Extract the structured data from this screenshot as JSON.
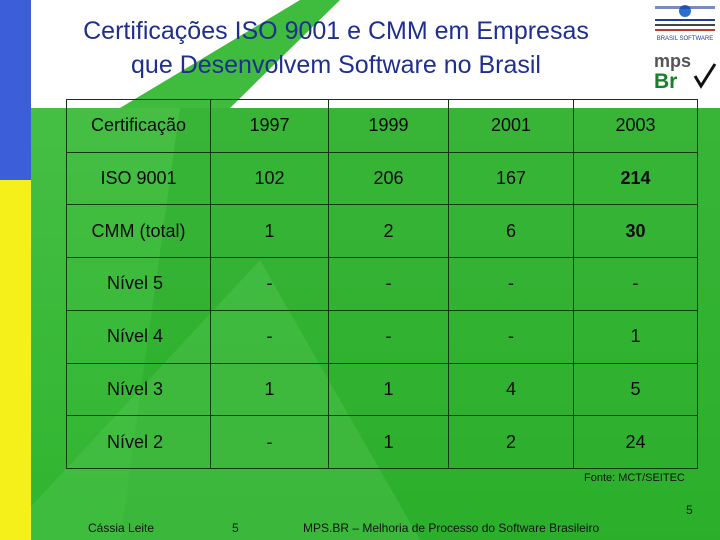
{
  "slide": {
    "title_line1": "Certificações ISO 9001 e CMM em Empresas",
    "title_line2": "que Desenvolvem Software no Brasil"
  },
  "logos": {
    "top_logo_text": "BRASIL SOFTWARE",
    "mps_logo_text_top": "mps",
    "mps_logo_text_bottom": "Br"
  },
  "table": {
    "header": [
      "Certificação",
      "1997",
      "1999",
      "2001",
      "2003"
    ],
    "rows": [
      [
        "ISO 9001",
        "102",
        "206",
        "167",
        "214"
      ],
      [
        "CMM (total)",
        "1",
        "2",
        "6",
        "30"
      ],
      [
        "Nível 5",
        "-",
        "-",
        "-",
        "-"
      ],
      [
        "Nível 4",
        "-",
        "-",
        "-",
        "1"
      ],
      [
        "Nível 3",
        "1",
        "1",
        "4",
        "5"
      ],
      [
        "Nível 2",
        "-",
        "1",
        "2",
        "24"
      ]
    ]
  },
  "source": "Fonte: MCT/SEITEC",
  "footer": {
    "page_number_right": "5",
    "author": "Cássia Leite",
    "page_number": "5",
    "text": "MPS.BR – Melhoria de Processo do Software Brasileiro"
  },
  "colors": {
    "title": "#1f2f8f",
    "background_green": "#2fb52f",
    "left_blue": "#3c5ed8",
    "left_yellow": "#f5ef1a"
  }
}
